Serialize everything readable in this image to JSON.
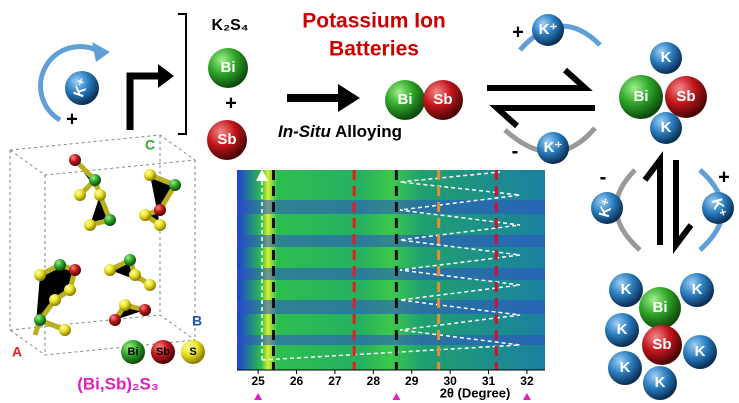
{
  "left": {
    "k_ion": "K⁺",
    "plus": "+",
    "axis_c": "C",
    "axis_a": "A",
    "axis_b": "B",
    "legend": [
      "Bi",
      "Sb",
      "S"
    ],
    "formula": "(Bi,Sb)₂S₃"
  },
  "reactants": {
    "sulfide": "K₂S₄",
    "bi": "Bi",
    "plus": "+",
    "sb": "Sb"
  },
  "title": [
    "Potassium Ion",
    "Batteries"
  ],
  "alloy": {
    "bi": "Bi",
    "sb": "Sb",
    "italic": "In-Situ",
    "rest": " Alloying"
  },
  "exchange_top": {
    "sign": "+",
    "ion": "K⁺"
  },
  "exchange_bottom": {
    "sign": "-",
    "ion": "K⁺"
  },
  "phase1": {
    "bi": "Bi",
    "sb": "Sb",
    "k": [
      "K",
      "K"
    ]
  },
  "exchange_left": {
    "sign": "-",
    "ion": "K⁺"
  },
  "exchange_right": {
    "sign": "+",
    "ion": "K⁺"
  },
  "phase2": {
    "bi": "Bi",
    "sb": "Sb",
    "k": [
      "K",
      "K",
      "K",
      "K",
      "K",
      "K"
    ]
  },
  "xrd_map": {
    "xlim": [
      24.45,
      32.47
    ],
    "xticks": [
      25,
      26,
      27,
      28,
      29,
      30,
      31,
      32
    ],
    "xlabel": "2θ (Degree)",
    "ref_lines": [
      {
        "x": 25.4,
        "color": "#111"
      },
      {
        "x": 27.5,
        "color": "#e02020"
      },
      {
        "x": 28.6,
        "color": "#111"
      },
      {
        "x": 29.7,
        "color": "#f08a30"
      },
      {
        "x": 31.2,
        "color": "#d01030"
      }
    ],
    "markers": [
      25,
      28.6,
      32
    ]
  }
}
